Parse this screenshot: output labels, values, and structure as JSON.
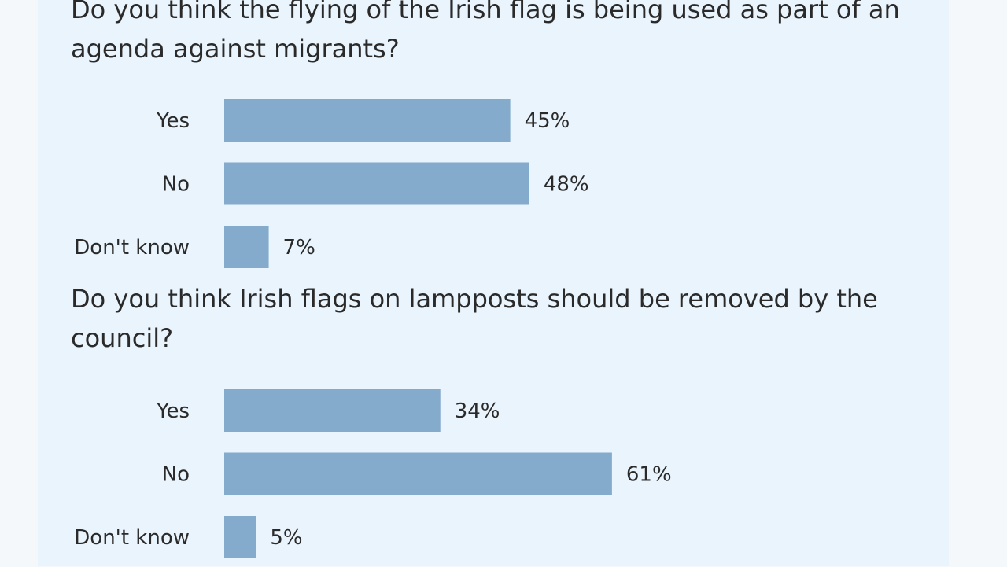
{
  "colors": {
    "bar": "#84aacc",
    "panel": "#eaf4fc",
    "text": "#2a2a2a"
  },
  "chart_data": [
    {
      "type": "bar",
      "orientation": "horizontal",
      "title": "Do you think the flying of the Irish flag is being used as part of an agenda against migrants?",
      "categories": [
        "Yes",
        "No",
        "Don't know"
      ],
      "values": [
        45,
        48,
        7
      ],
      "value_labels": [
        "45%",
        "48%",
        "7%"
      ],
      "unit": "%"
    },
    {
      "type": "bar",
      "orientation": "horizontal",
      "title": "Do you think Irish flags on lampposts should be removed by the council?",
      "categories": [
        "Yes",
        "No",
        "Don't know"
      ],
      "values": [
        34,
        61,
        5
      ],
      "value_labels": [
        "34%",
        "61%",
        "5%"
      ],
      "unit": "%"
    }
  ]
}
